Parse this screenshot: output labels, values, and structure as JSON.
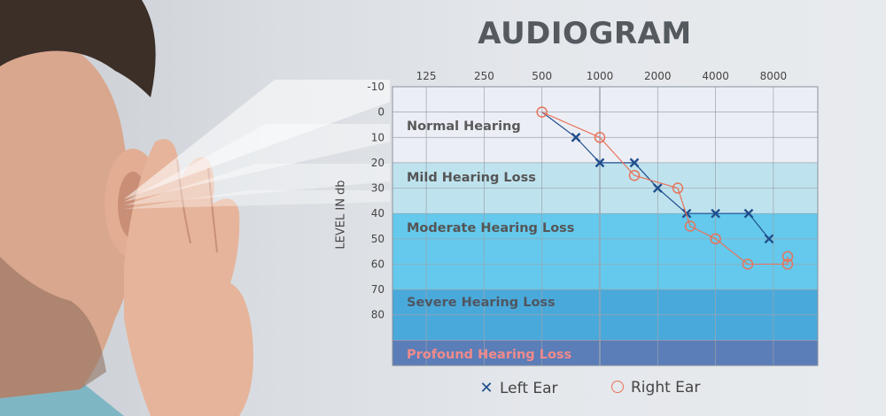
{
  "title": "AUDIOGRAM",
  "chart_data": {
    "type": "line",
    "title": "AUDIOGRAM",
    "ylabel": "LEVEL IN db",
    "x_tick_labels": [
      "125",
      "250",
      "500",
      "1000",
      "2000",
      "4000",
      "8000"
    ],
    "y_tick_labels": [
      "-10",
      "0",
      "10",
      "20",
      "30",
      "40",
      "50",
      "60",
      "70",
      "80"
    ],
    "ylim": [
      -10,
      100
    ],
    "y_inverted": true,
    "grid": true,
    "bands": [
      {
        "label": "Normal Hearing",
        "from": -10,
        "to": 20,
        "color": "#eceef6",
        "label_color": "#5a5a5a"
      },
      {
        "label": "Mild Hearing Loss",
        "from": 20,
        "to": 40,
        "color": "#bfe3ee",
        "label_color": "#555555"
      },
      {
        "label": "Moderate Hearing Loss",
        "from": 40,
        "to": 70,
        "color": "#64c9ec",
        "label_color": "#555555"
      },
      {
        "label": "Severe Hearing Loss",
        "from": 70,
        "to": 90,
        "color": "#4aa9db",
        "label_color": "#4f5660"
      },
      {
        "label": "Profound Hearing Loss",
        "from": 90,
        "to": 100,
        "color": "#5b7db8",
        "label_color": "#f28a8a"
      }
    ],
    "series": [
      {
        "name": "Left Ear",
        "marker": "x",
        "color": "#1f4e8c",
        "points": [
          [
            500,
            0
          ],
          [
            750,
            10
          ],
          [
            1000,
            20
          ],
          [
            1500,
            20
          ],
          [
            2000,
            30
          ],
          [
            3000,
            40
          ],
          [
            4000,
            40
          ],
          [
            6000,
            40
          ],
          [
            8000,
            50
          ]
        ]
      },
      {
        "name": "Right Ear",
        "marker": "o",
        "color": "#e8735a",
        "points": [
          [
            500,
            0
          ],
          [
            1000,
            10
          ],
          [
            1500,
            25
          ],
          [
            2750,
            30
          ],
          [
            3000,
            45
          ],
          [
            4000,
            50
          ],
          [
            6000,
            60
          ],
          [
            8000,
            60
          ],
          [
            8000,
            57
          ]
        ]
      }
    ]
  },
  "legend": {
    "left_label": "Left Ear",
    "right_label": "Right Ear"
  },
  "colors": {
    "left_ear": "#1f4e8c",
    "right_ear": "#e8735a",
    "grid": "#9aa3ad",
    "title": "#555a60"
  }
}
